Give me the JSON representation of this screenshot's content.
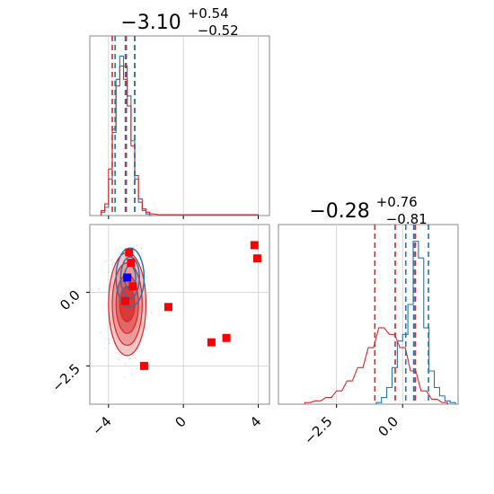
{
  "chart_data": [
    {
      "type": "histogram",
      "panel": "top-left",
      "title": {
        "main": "−3.10",
        "sup": "+0.54",
        "sub": "−0.52"
      },
      "xlim": [
        -5,
        4.6
      ],
      "xticks": [
        -4,
        0,
        4
      ],
      "tick_labels_visible": false,
      "grid": true,
      "series": [
        {
          "color": "#1f77b4",
          "x": [
            -4.3,
            -4.1,
            -3.9,
            -3.7,
            -3.5,
            -3.3,
            -3.1,
            -2.9,
            -2.7,
            -2.5,
            -2.3,
            -2.1,
            -1.9,
            -1.7
          ],
          "counts": [
            0.02,
            0.05,
            0.22,
            0.5,
            0.82,
            0.96,
            0.9,
            0.72,
            0.45,
            0.22,
            0.08,
            0.03,
            0.01,
            0
          ]
        },
        {
          "color": "#d62728",
          "x": [
            -4.3,
            -4.1,
            -3.9,
            -3.7,
            -3.5,
            -3.3,
            -3.1,
            -2.9,
            -2.7,
            -2.5,
            -2.3,
            -2.1,
            -1.9,
            -1.7,
            -1.2,
            1.2,
            3.9
          ],
          "counts": [
            0.03,
            0.07,
            0.28,
            0.52,
            0.78,
            0.9,
            0.82,
            0.66,
            0.42,
            0.24,
            0.1,
            0.04,
            0.02,
            0.01,
            0.005,
            0.005,
            0.005
          ]
        }
      ],
      "vlines": [
        {
          "color": "#d62728",
          "x": [
            -3.8,
            -3.05,
            -2.6
          ]
        },
        {
          "color": "#1f77b4",
          "x": [
            -3.65,
            -3.1,
            -2.6
          ]
        }
      ]
    },
    {
      "type": "histogram",
      "panel": "bottom-right",
      "title": {
        "main": "−0.28",
        "sup": "+0.76",
        "sub": "−0.81"
      },
      "xlim": [
        -4.7,
        2.1
      ],
      "xticks": [
        -2.5,
        0.0
      ],
      "xtick_labels": [
        "−2.5",
        "0.0"
      ],
      "grid": true,
      "series": [
        {
          "color": "#1f77b4",
          "x": [
            -0.9,
            -0.7,
            -0.5,
            -0.3,
            -0.1,
            0.1,
            0.3,
            0.5,
            0.7,
            0.9,
            1.1,
            1.3,
            1.5,
            1.7,
            1.9
          ],
          "counts": [
            0.01,
            0.04,
            0.1,
            0.22,
            0.38,
            0.42,
            0.6,
            0.98,
            0.88,
            0.46,
            0.2,
            0.1,
            0.05,
            0.02,
            0.01
          ]
        },
        {
          "color": "#d62728",
          "x": [
            -3.6,
            -3.2,
            -2.8,
            -2.4,
            -2.0,
            -1.6,
            -1.2,
            -0.8,
            -0.4,
            0.0,
            0.4,
            0.8,
            1.2,
            1.6
          ],
          "counts": [
            0.01,
            0.02,
            0.04,
            0.08,
            0.14,
            0.22,
            0.34,
            0.46,
            0.42,
            0.34,
            0.2,
            0.08,
            0.03,
            0.01
          ]
        }
      ],
      "vlines": [
        {
          "color": "#d62728",
          "x": [
            -1.05,
            -0.28,
            0.48
          ]
        },
        {
          "color": "#1f77b4",
          "x": [
            0.12,
            0.42,
            0.98
          ]
        }
      ]
    },
    {
      "type": "scatter",
      "panel": "bottom-left",
      "xlim": [
        -5,
        4.6
      ],
      "ylim": [
        -3.8,
        2.3
      ],
      "xticks": [
        -4,
        0,
        4
      ],
      "xtick_labels": [
        "−4",
        "0",
        "4"
      ],
      "yticks": [
        0.0,
        -2.5
      ],
      "ytick_labels": [
        "0.0",
        "−2.5"
      ],
      "grid": true,
      "contours": {
        "red": {
          "color": "#d62728",
          "center": [
            -3.0,
            -0.4
          ],
          "radii": [
            [
              1.0,
              1.75
            ],
            [
              0.8,
              1.4
            ],
            [
              0.6,
              1.0
            ],
            [
              0.4,
              0.6
            ]
          ]
        },
        "blue": {
          "color": "#1f77b4",
          "center": [
            -2.85,
            0.5
          ],
          "radii": [
            [
              0.75,
              1.0
            ],
            [
              0.5,
              0.7
            ],
            [
              0.3,
              0.4
            ]
          ]
        }
      },
      "red_squares": [
        [
          -2.9,
          1.35
        ],
        [
          -2.8,
          1.0
        ],
        [
          -2.7,
          0.2
        ],
        [
          -3.1,
          -0.3
        ],
        [
          -0.8,
          -0.5
        ],
        [
          -2.1,
          -2.5
        ],
        [
          1.5,
          -1.7
        ],
        [
          2.3,
          -1.55
        ],
        [
          3.8,
          1.6
        ],
        [
          3.95,
          1.15
        ]
      ],
      "blue_squares": [
        [
          -3.0,
          0.5
        ]
      ]
    }
  ]
}
